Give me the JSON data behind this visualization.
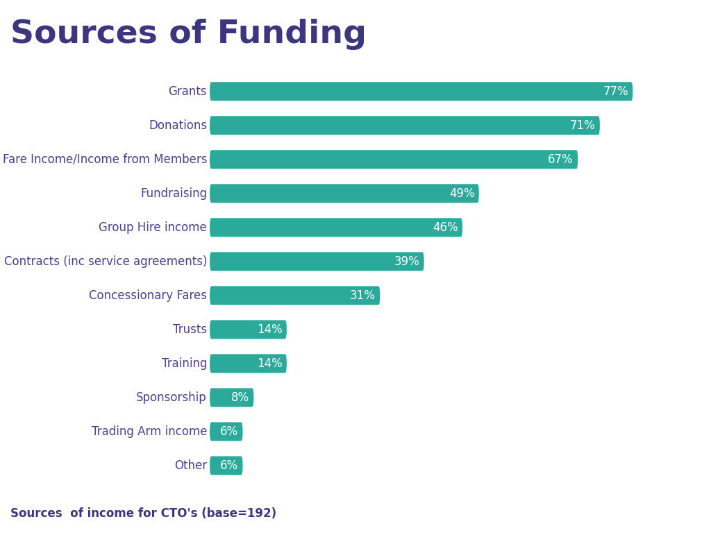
{
  "title": "Sources of Funding",
  "subtitle": "Sources  of income for CTO's (base=192)",
  "categories": [
    "Grants",
    "Donations",
    "Fare Income/Income from Members",
    "Fundraising",
    "Group Hire income",
    "Contracts (inc service agreements)",
    "Concessionary Fares",
    "Trusts",
    "Training",
    "Sponsorship",
    "Trading Arm income",
    "Other"
  ],
  "values": [
    77,
    71,
    67,
    49,
    46,
    39,
    31,
    14,
    14,
    8,
    6,
    6
  ],
  "bar_color": "#2baa9c",
  "title_color": "#3d3580",
  "subtitle_color": "#3d3580",
  "label_color": "#4b4090",
  "value_color": "#ffffff",
  "background_color": "#ffffff",
  "title_fontsize": 34,
  "subtitle_fontsize": 12,
  "label_fontsize": 12,
  "value_fontsize": 12,
  "xlim": [
    0,
    88
  ]
}
